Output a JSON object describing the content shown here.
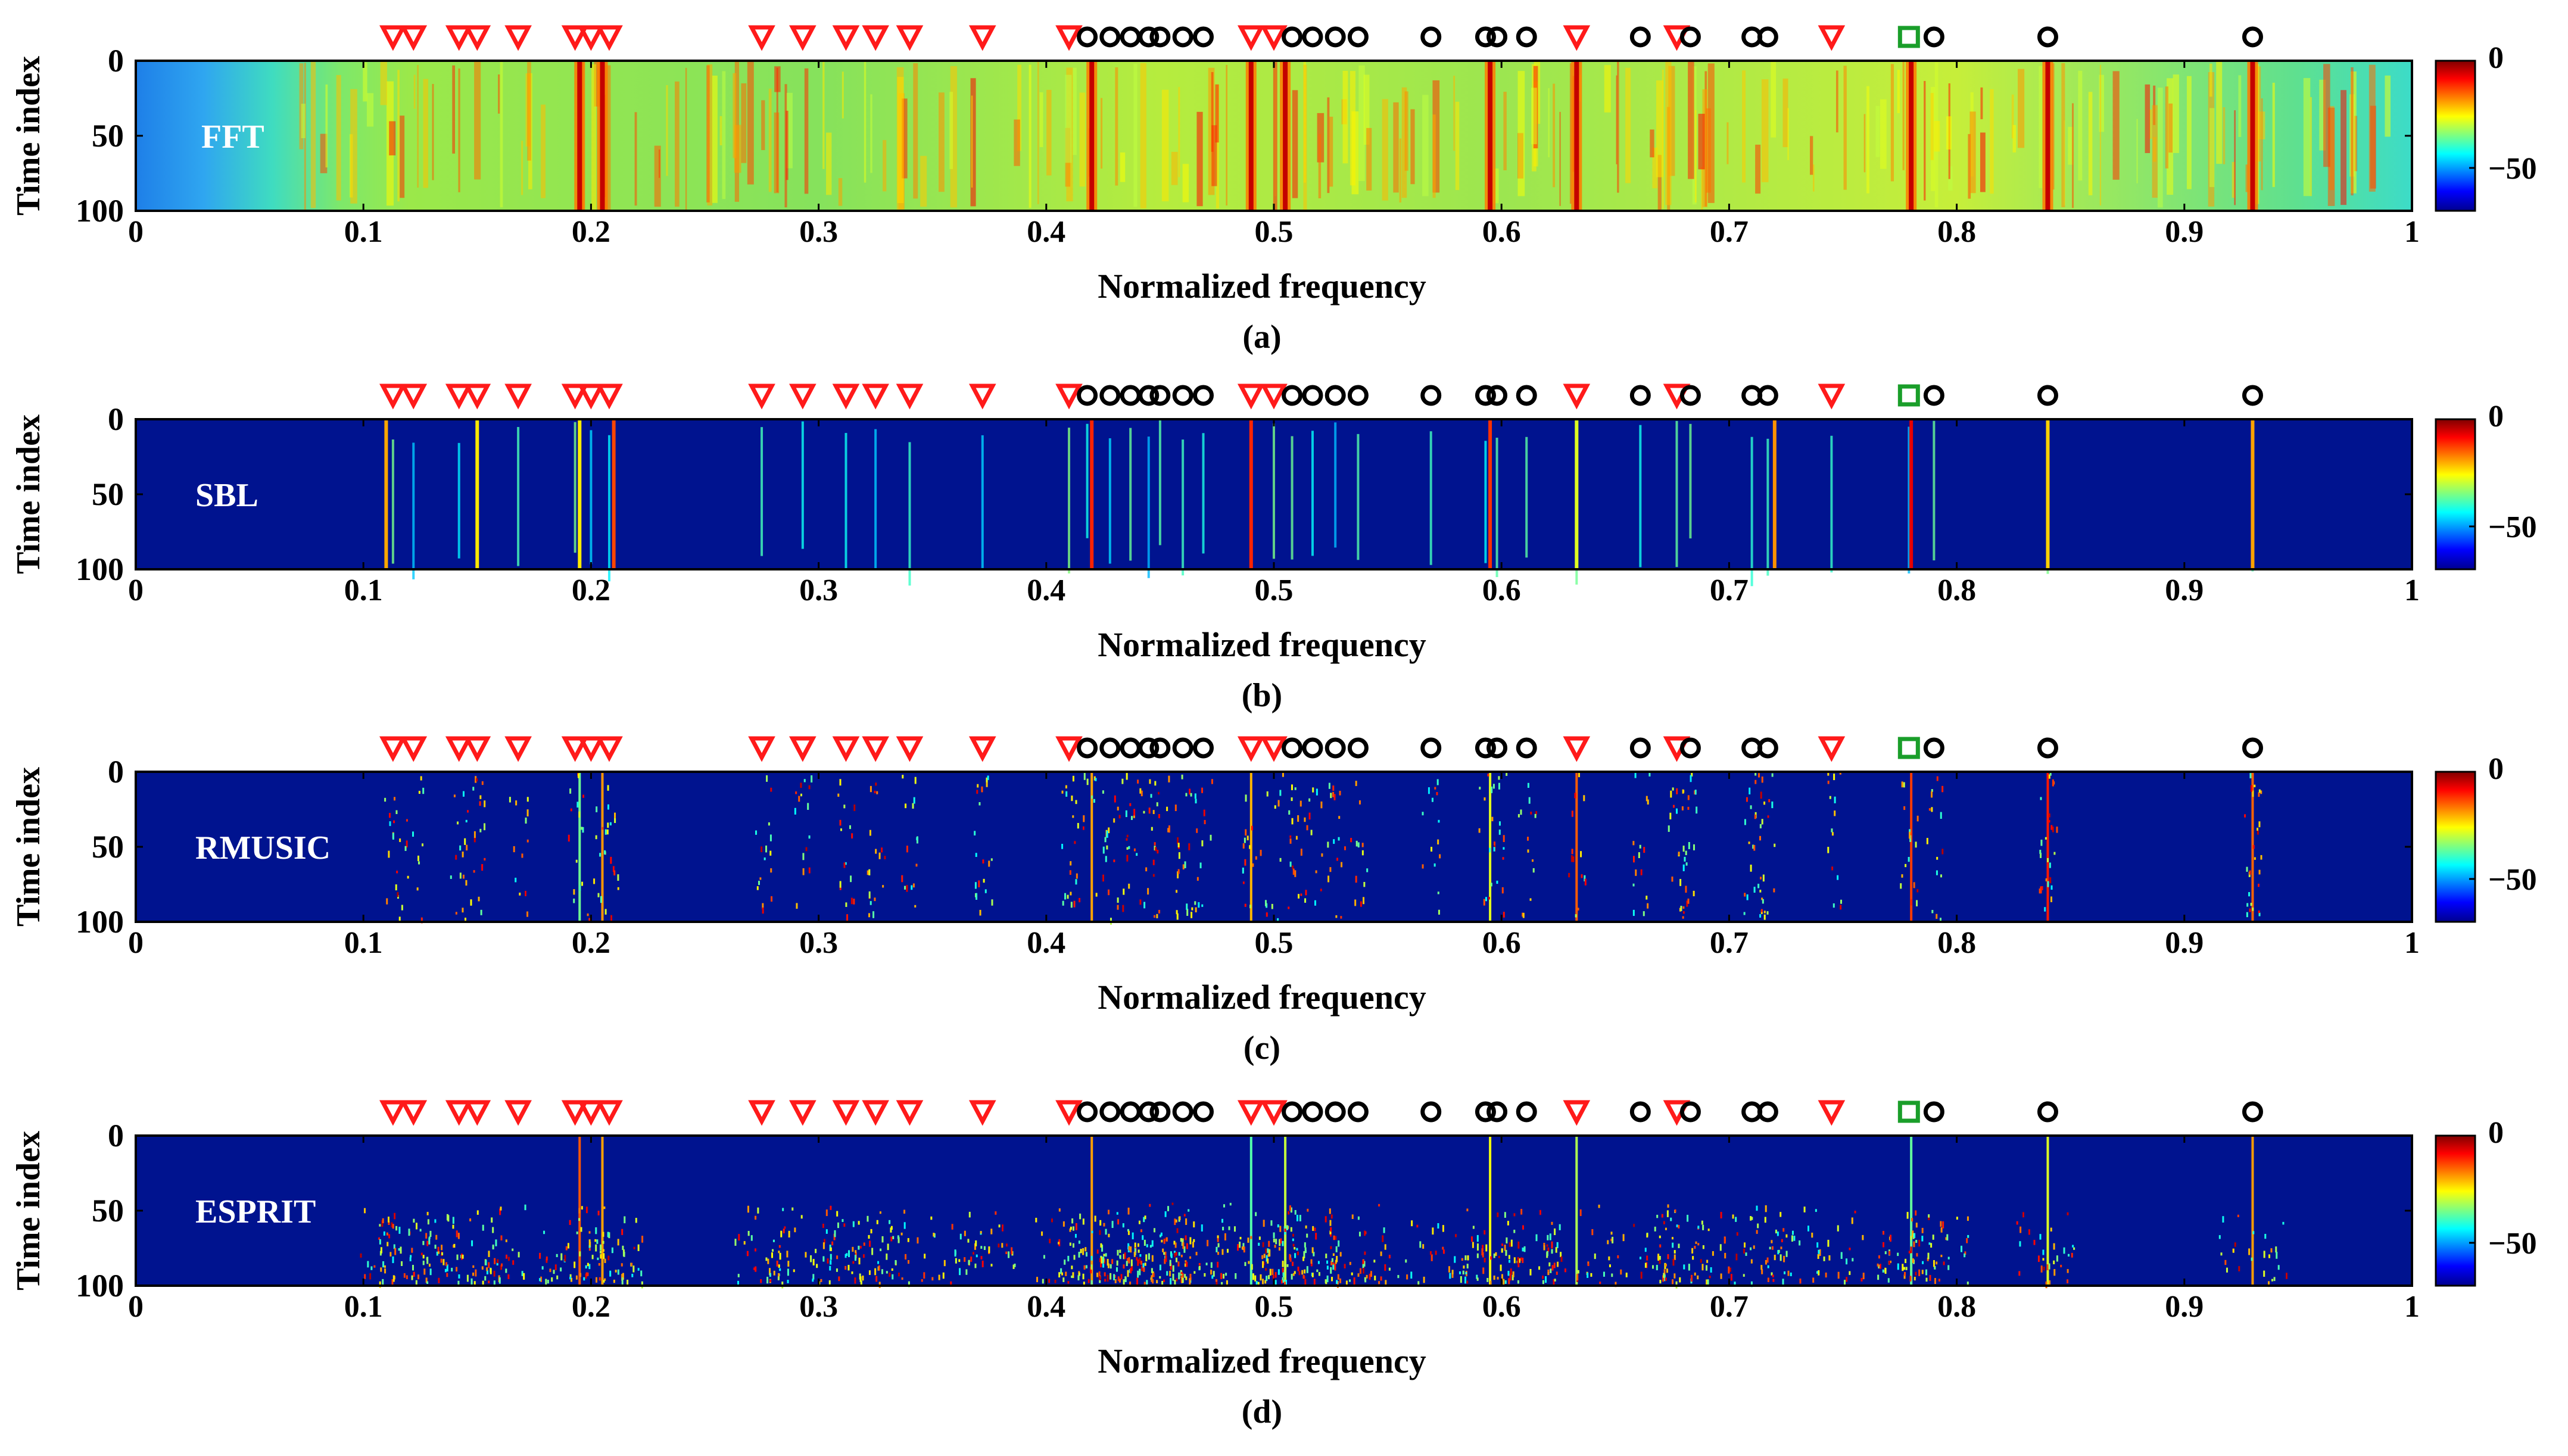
{
  "chart_data": [
    {
      "type": "heatmap",
      "method": "FFT",
      "panel_label": "(a)",
      "xlabel": "Normalized frequency",
      "ylabel": "Time index",
      "xlim": [
        0,
        1
      ],
      "ylim": [
        0,
        100
      ],
      "x_ticks": [
        "0",
        "0.1",
        "0.2",
        "0.3",
        "0.4",
        "0.5",
        "0.6",
        "0.7",
        "0.8",
        "0.9",
        "1"
      ],
      "y_ticks": [
        "0",
        "50",
        "100"
      ],
      "colorbar": {
        "range": [
          -70,
          0
        ],
        "ticks": [
          "0",
          "−50"
        ]
      },
      "strong_lines": [
        0.195,
        0.205,
        0.42,
        0.49,
        0.505,
        0.595,
        0.633,
        0.78,
        0.84,
        0.93
      ]
    },
    {
      "type": "heatmap",
      "method": "SBL",
      "panel_label": "(b)",
      "xlabel": "Normalized frequency",
      "ylabel": "Time index",
      "xlim": [
        0,
        1
      ],
      "ylim": [
        0,
        100
      ],
      "x_ticks": [
        "0",
        "0.1",
        "0.2",
        "0.3",
        "0.4",
        "0.5",
        "0.6",
        "0.7",
        "0.8",
        "0.9",
        "1"
      ],
      "y_ticks": [
        "0",
        "50",
        "100"
      ],
      "colorbar": {
        "range": [
          -70,
          0
        ],
        "ticks": [
          "0",
          "−50"
        ]
      },
      "strong_lines": [
        0.11,
        0.15,
        0.195,
        0.21,
        0.42,
        0.49,
        0.595,
        0.633,
        0.72,
        0.78,
        0.84,
        0.93
      ]
    },
    {
      "type": "heatmap",
      "method": "RMUSIC",
      "panel_label": "(c)",
      "xlabel": "Normalized frequency",
      "ylabel": "Time index",
      "xlim": [
        0,
        1
      ],
      "ylim": [
        0,
        100
      ],
      "x_ticks": [
        "0",
        "0.1",
        "0.2",
        "0.3",
        "0.4",
        "0.5",
        "0.6",
        "0.7",
        "0.8",
        "0.9",
        "1"
      ],
      "y_ticks": [
        "0",
        "50",
        "100"
      ],
      "colorbar": {
        "range": [
          -70,
          0
        ],
        "ticks": [
          "0",
          "−50"
        ]
      },
      "strong_lines": [
        0.195,
        0.205,
        0.42,
        0.49,
        0.595,
        0.633,
        0.78,
        0.84,
        0.93
      ]
    },
    {
      "type": "heatmap",
      "method": "ESPRIT",
      "panel_label": "(d)",
      "xlabel": "Normalized frequency",
      "ylabel": "Time index",
      "xlim": [
        0,
        1
      ],
      "ylim": [
        0,
        100
      ],
      "x_ticks": [
        "0",
        "0.1",
        "0.2",
        "0.3",
        "0.4",
        "0.5",
        "0.6",
        "0.7",
        "0.8",
        "0.9",
        "1"
      ],
      "y_ticks": [
        "0",
        "50",
        "100"
      ],
      "colorbar": {
        "range": [
          -70,
          0
        ],
        "ticks": [
          "0",
          "−50"
        ]
      },
      "strong_lines": [
        0.195,
        0.205,
        0.42,
        0.49,
        0.505,
        0.595,
        0.633,
        0.78,
        0.84,
        0.93
      ]
    }
  ],
  "markers": {
    "triangles": [
      0.113,
      0.122,
      0.142,
      0.15,
      0.168,
      0.193,
      0.2,
      0.208,
      0.275,
      0.293,
      0.312,
      0.325,
      0.34,
      0.372,
      0.41,
      0.49,
      0.5,
      0.633,
      0.677,
      0.745
    ],
    "circles": [
      0.418,
      0.428,
      0.437,
      0.445,
      0.45,
      0.46,
      0.469,
      0.508,
      0.517,
      0.527,
      0.537,
      0.569,
      0.593,
      0.598,
      0.611,
      0.661,
      0.683,
      0.71,
      0.717,
      0.79,
      0.84,
      0.93
    ],
    "squares": [
      0.779
    ],
    "colors": {
      "triangle": "#ff1a1a",
      "circle": "#000000",
      "square": "#1a9e2a"
    }
  },
  "colors": {
    "background": "#00138f",
    "axis": "#000000"
  }
}
